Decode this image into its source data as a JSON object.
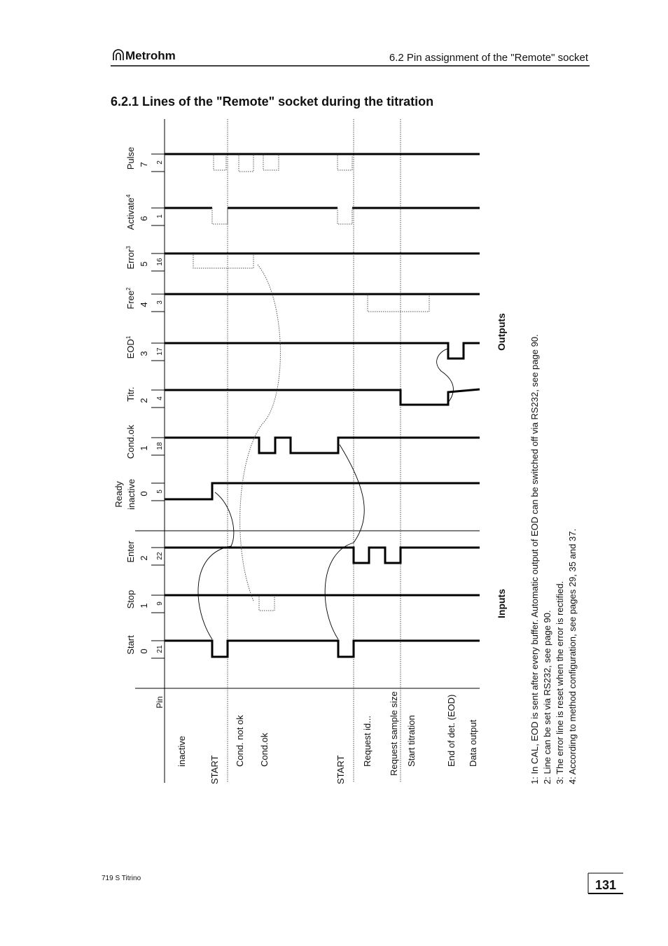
{
  "header": {
    "logo": "Metrohm",
    "section": "6.2 Pin assignment of the \"Remote\" socket"
  },
  "heading": "6.2.1  Lines of the \"Remote\" socket during the titration",
  "diagram": {
    "signals": [
      {
        "name": "Pulse",
        "number": "7",
        "pin": "2"
      },
      {
        "name": "Activate",
        "note": "4",
        "number": "6",
        "pin": "1"
      },
      {
        "name": "Error",
        "note": "3",
        "number": "5",
        "pin": "16"
      },
      {
        "name": "Free",
        "note": "2",
        "number": "4",
        "pin": "3"
      },
      {
        "name": "EOD",
        "note": "1",
        "number": "3",
        "pin": "17"
      },
      {
        "name": "Titr.",
        "number": "2",
        "pin": "4"
      },
      {
        "name": "Cond.ok",
        "number": "1",
        "pin": "18"
      },
      {
        "name": "Ready",
        "name_line2": "inactive",
        "number": "0",
        "pin": "5"
      },
      {
        "name": "Enter",
        "number": "2",
        "pin": "22"
      },
      {
        "name": "Stop",
        "number": "1",
        "pin": "9"
      },
      {
        "name": "Start",
        "number": "0",
        "pin": "21"
      }
    ],
    "pin_label": "Pin",
    "outputs_label": "Outputs",
    "inputs_label": "Inputs",
    "events": [
      "inactive",
      "START",
      "Cond. not ok",
      "Cond.ok",
      "START",
      "Request id...",
      "Request sample size",
      "Start titration",
      "End of det. (EOD)",
      "Data output"
    ]
  },
  "footnotes": [
    "1: In CAL, EOD is sent after every buffer. Automatic output of EOD can be switched off via RS232, see page 90.",
    "2: Line can be set via RS232,  see page 90.",
    "3: The error line is reset when the error is rectified.",
    "4: According to method configuration, see pages 29, 35 and 37."
  ],
  "footer": {
    "product": "719 S Titrino",
    "page": "131"
  }
}
